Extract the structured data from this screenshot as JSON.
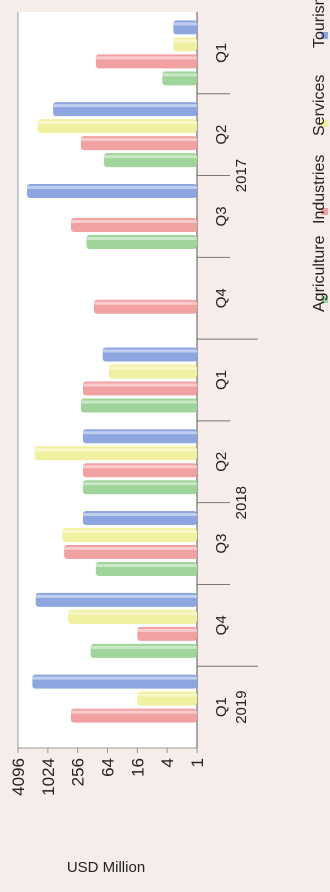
{
  "chart_data": {
    "type": "bar",
    "orientation": "horizontal",
    "log_scale": true,
    "log_base": 2,
    "ylabel": "USD Million",
    "axis_ticks": [
      "4096",
      "1024",
      "256",
      "64",
      "16",
      "4",
      "1"
    ],
    "axis_range": [
      1,
      4096
    ],
    "grid": false,
    "legend_position": "bottom",
    "years": [
      {
        "label": "2017",
        "quarters": [
          "Q1",
          "Q2",
          "Q3",
          "Q4"
        ]
      },
      {
        "label": "2018",
        "quarters": [
          "Q1",
          "Q2",
          "Q3",
          "Q4"
        ]
      },
      {
        "label": "2019",
        "quarters": [
          "Q1"
        ]
      }
    ],
    "categories": [
      "Q1 2017",
      "Q2 2017",
      "Q3 2017",
      "Q4 2017",
      "Q1 2018",
      "Q2 2018",
      "Q3 2018",
      "Q4 2018",
      "Q1 2019"
    ],
    "series": [
      {
        "name": "Agriculture",
        "color": "#9fd49a",
        "values": [
          5,
          75,
          170,
          null,
          220,
          200,
          110,
          140,
          null
        ]
      },
      {
        "name": "Industries",
        "color": "#f2a1a3",
        "values": [
          110,
          220,
          350,
          120,
          200,
          200,
          480,
          16,
          350
        ]
      },
      {
        "name": "Services",
        "color": "#f1f0a0",
        "values": [
          3,
          1650,
          null,
          null,
          60,
          1900,
          520,
          400,
          16
        ]
      },
      {
        "name": "Tourism",
        "color": "#8ea6df",
        "values": [
          3,
          800,
          2700,
          null,
          80,
          200,
          200,
          1800,
          2100
        ]
      }
    ]
  }
}
